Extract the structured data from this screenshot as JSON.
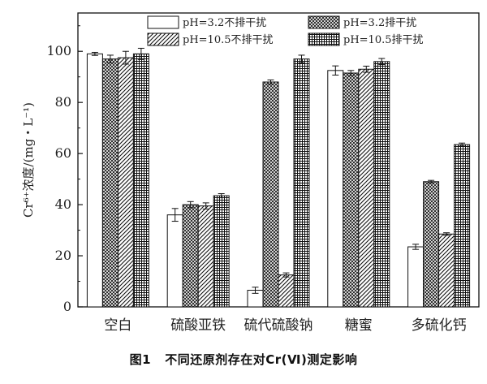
{
  "caption": "图1   不同还原剂存在对Cr(Ⅵ)测定影响",
  "chart_data": {
    "type": "bar",
    "ylabel": "Cr⁶⁺浓度/(mg・L⁻¹)",
    "xlabel": "",
    "ylim": [
      0,
      115
    ],
    "yticks": [
      0,
      20,
      40,
      60,
      80,
      100
    ],
    "categories": [
      "空白",
      "硫酸亚铁",
      "硫代硫酸钠",
      "糖蜜",
      "多硫化钙"
    ],
    "legend_position": "top",
    "series": [
      {
        "name": "pH=3.2不排干扰",
        "pattern": "white",
        "values": [
          99,
          36,
          6.5,
          92.5,
          23.5
        ],
        "errors": [
          0.6,
          2.5,
          1.2,
          1.8,
          1.0
        ]
      },
      {
        "name": "pH=3.2排干扰",
        "pattern": "crosshatch",
        "values": [
          97,
          40,
          88,
          91.5,
          49
        ],
        "errors": [
          1.5,
          1.2,
          0.8,
          1.0,
          0.5
        ]
      },
      {
        "name": "pH=10.5不排干扰",
        "pattern": "diagonal",
        "values": [
          97.5,
          39.5,
          12.5,
          93,
          28.5
        ],
        "errors": [
          2.5,
          1.2,
          0.8,
          1.2,
          0.5
        ]
      },
      {
        "name": "pH=10.5排干扰",
        "pattern": "grid",
        "values": [
          99,
          43.5,
          97,
          96,
          63.5
        ],
        "errors": [
          2.2,
          0.8,
          1.5,
          1.2,
          0.6
        ]
      }
    ]
  }
}
